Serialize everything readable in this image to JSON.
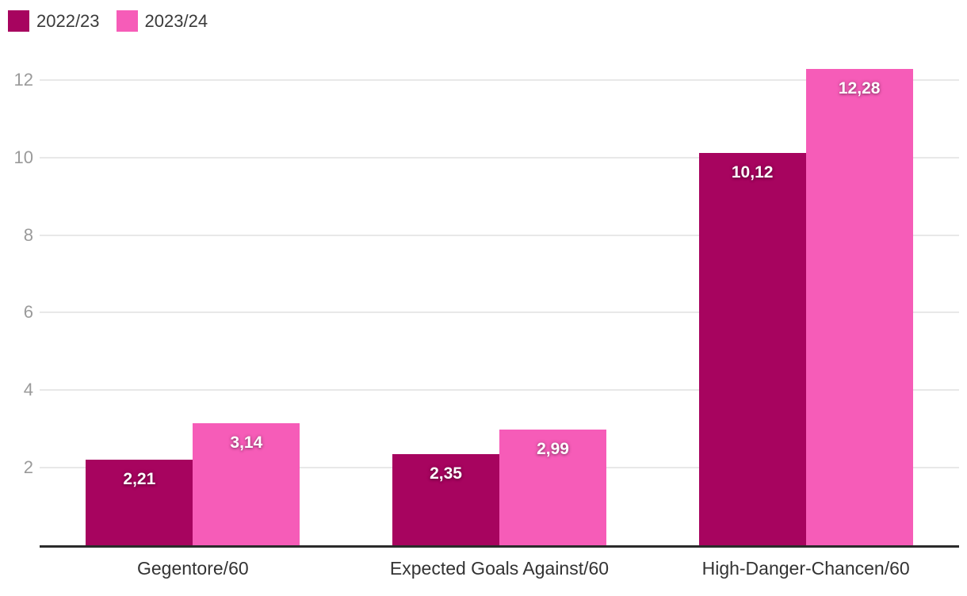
{
  "legend": {
    "items": [
      {
        "label": "2022/23",
        "color": "#a7045f"
      },
      {
        "label": "2023/24",
        "color": "#f65cb8"
      }
    ]
  },
  "chart_data": {
    "type": "bar",
    "title": "",
    "xlabel": "",
    "ylabel": "",
    "categories": [
      "Gegentore/60",
      "Expected Goals Against/60",
      "High-Danger-Chancen/60"
    ],
    "series": [
      {
        "name": "2022/23",
        "color": "#a7045f",
        "values": [
          2.21,
          2.35,
          10.12
        ],
        "value_labels": [
          "2,21",
          "2,35",
          "10,12"
        ]
      },
      {
        "name": "2023/24",
        "color": "#f65cb8",
        "values": [
          3.14,
          2.99,
          12.28
        ],
        "value_labels": [
          "3,14",
          "2,99",
          "12,28"
        ]
      }
    ],
    "ylim": [
      0,
      12.8
    ],
    "yticks": [
      "2",
      "4",
      "6",
      "8",
      "10",
      "12"
    ],
    "ytick_values": [
      2,
      4,
      6,
      8,
      10,
      12
    ],
    "grid": true,
    "legend_position": "top-left",
    "decimal_separator": ",",
    "colors": {
      "gridline": "#e8e8e8",
      "baseline": "#2b2b2b",
      "ytick_text": "#9a9a9a",
      "category_text": "#333333",
      "legend_text": "#3a3a3a",
      "value_text": "#ffffff"
    }
  }
}
